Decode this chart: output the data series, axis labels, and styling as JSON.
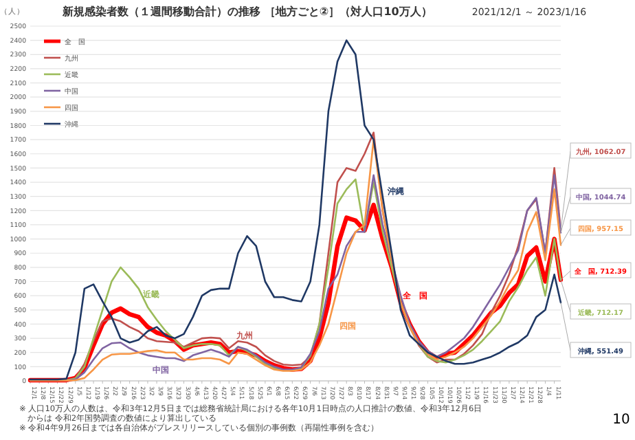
{
  "chart_data": {
    "type": "line",
    "title": "新規感染者数（１週間移動合計）の推移 ［地方ごと②］（対人口10万人）",
    "subtitle": "2021/12/1 ～ 2023/1/16",
    "ylabel": "（人）",
    "x": [
      "2021-12-01",
      "2021-12-08",
      "2021-12-15",
      "2021-12-22",
      "2021-12-29",
      "2022-01-05",
      "2022-01-12",
      "2022-01-19",
      "2022-01-26",
      "2022-02-02",
      "2022-02-09",
      "2022-02-16",
      "2022-02-23",
      "2022-03-02",
      "2022-03-09",
      "2022-03-16",
      "2022-03-23",
      "2022-03-30",
      "2022-04-06",
      "2022-04-13",
      "2022-04-20",
      "2022-04-27",
      "2022-05-04",
      "2022-05-11",
      "2022-05-18",
      "2022-05-25",
      "2022-06-01",
      "2022-06-08",
      "2022-06-15",
      "2022-06-22",
      "2022-06-29",
      "2022-07-06",
      "2022-07-13",
      "2022-07-20",
      "2022-07-27",
      "2022-08-03",
      "2022-08-10",
      "2022-08-17",
      "2022-08-24",
      "2022-08-31",
      "2022-09-07",
      "2022-09-14",
      "2022-09-21",
      "2022-09-28",
      "2022-10-05",
      "2022-10-12",
      "2022-10-19",
      "2022-10-26",
      "2022-11-02",
      "2022-11-09",
      "2022-11-16",
      "2022-11-23",
      "2022-11-30",
      "2022-12-07",
      "2022-12-14",
      "2022-12-21",
      "2022-12-28",
      "2023-01-04",
      "2023-01-11",
      "2023-01-16"
    ],
    "series": [
      {
        "name": "全　国",
        "color": "#ff0000",
        "values": [
          5,
          5,
          5,
          5,
          5,
          20,
          90,
          250,
          400,
          480,
          510,
          470,
          450,
          380,
          340,
          320,
          280,
          220,
          250,
          260,
          270,
          260,
          200,
          210,
          200,
          180,
          140,
          110,
          90,
          80,
          85,
          140,
          300,
          550,
          950,
          1150,
          1130,
          1060,
          1240,
          1000,
          800,
          550,
          400,
          280,
          200,
          160,
          190,
          200,
          260,
          320,
          400,
          480,
          530,
          620,
          680,
          880,
          940,
          700,
          1000,
          712.39
        ]
      },
      {
        "name": "九州",
        "color": "#c0504d",
        "values": [
          5,
          5,
          5,
          5,
          5,
          20,
          120,
          280,
          420,
          440,
          420,
          380,
          350,
          300,
          280,
          275,
          270,
          240,
          270,
          300,
          305,
          300,
          230,
          280,
          270,
          240,
          180,
          140,
          115,
          110,
          115,
          170,
          400,
          900,
          1400,
          1500,
          1480,
          1600,
          1750,
          1200,
          850,
          550,
          380,
          250,
          170,
          130,
          150,
          150,
          190,
          250,
          330,
          480,
          600,
          750,
          950,
          1200,
          1280,
          900,
          1500,
          1062.07
        ]
      },
      {
        "name": "近畿",
        "color": "#9bbb59",
        "values": [
          null,
          null,
          null,
          5,
          5,
          15,
          100,
          300,
          500,
          700,
          800,
          730,
          650,
          520,
          430,
          350,
          290,
          230,
          250,
          260,
          260,
          250,
          180,
          240,
          210,
          170,
          120,
          90,
          75,
          75,
          90,
          180,
          400,
          800,
          1250,
          1350,
          1420,
          1050,
          1400,
          1050,
          800,
          550,
          380,
          260,
          170,
          140,
          130,
          150,
          180,
          220,
          280,
          350,
          420,
          560,
          660,
          780,
          870,
          600,
          1000,
          712.17
        ]
      },
      {
        "name": "中国",
        "color": "#8064a2",
        "values": [
          3,
          3,
          3,
          3,
          3,
          10,
          60,
          150,
          230,
          265,
          270,
          230,
          200,
          180,
          170,
          160,
          160,
          140,
          180,
          200,
          220,
          200,
          170,
          240,
          220,
          180,
          130,
          100,
          80,
          80,
          95,
          190,
          350,
          650,
          750,
          950,
          1050,
          1050,
          1450,
          1100,
          850,
          600,
          400,
          280,
          210,
          170,
          200,
          250,
          300,
          380,
          480,
          580,
          680,
          800,
          920,
          1200,
          1290,
          900,
          1450,
          1044.74
        ]
      },
      {
        "name": "四国",
        "color": "#f79646",
        "values": [
          3,
          3,
          3,
          3,
          3,
          5,
          20,
          80,
          150,
          185,
          190,
          190,
          200,
          210,
          215,
          200,
          200,
          150,
          150,
          160,
          160,
          150,
          120,
          200,
          190,
          150,
          110,
          80,
          70,
          70,
          80,
          130,
          250,
          400,
          650,
          900,
          1050,
          1100,
          1700,
          1200,
          850,
          550,
          380,
          260,
          190,
          150,
          170,
          200,
          240,
          300,
          380,
          460,
          560,
          680,
          780,
          1050,
          1190,
          850,
          1350,
          957.15
        ]
      },
      {
        "name": "沖縄",
        "color": "#1f3864",
        "values": [
          10,
          10,
          10,
          10,
          15,
          200,
          650,
          680,
          560,
          450,
          300,
          270,
          290,
          350,
          380,
          320,
          300,
          330,
          450,
          600,
          640,
          650,
          650,
          900,
          1020,
          950,
          700,
          590,
          590,
          570,
          560,
          700,
          1100,
          1900,
          2250,
          2400,
          2300,
          1800,
          1700,
          1300,
          900,
          500,
          320,
          260,
          200,
          170,
          140,
          120,
          120,
          130,
          150,
          170,
          200,
          240,
          270,
          320,
          450,
          500,
          750,
          551.49
        ]
      }
    ],
    "xlim": [
      "2021-12-01",
      "2023-01-16"
    ],
    "xticks": [
      {
        "value": "2021-12-01",
        "label": "12/1"
      },
      {
        "value": "2021-12-08",
        "label": "12/8"
      },
      {
        "value": "2021-12-15",
        "label": "12/15"
      },
      {
        "value": "2021-12-22",
        "label": "12/22"
      },
      {
        "value": "2021-12-29",
        "label": "12/29"
      },
      {
        "value": "2022-01-05",
        "label": "1/5"
      },
      {
        "value": "2022-01-12",
        "label": "1/12"
      },
      {
        "value": "2022-01-19",
        "label": "1/19"
      },
      {
        "value": "2022-01-26",
        "label": "1/26"
      },
      {
        "value": "2022-02-02",
        "label": "2/2"
      },
      {
        "value": "2022-02-09",
        "label": "2/9"
      },
      {
        "value": "2022-02-16",
        "label": "2/16"
      },
      {
        "value": "2022-02-23",
        "label": "2/23"
      },
      {
        "value": "2022-03-02",
        "label": "3/2"
      },
      {
        "value": "2022-03-09",
        "label": "3/9"
      },
      {
        "value": "2022-03-16",
        "label": "3/16"
      },
      {
        "value": "2022-03-23",
        "label": "3/23"
      },
      {
        "value": "2022-03-30",
        "label": "3/30"
      },
      {
        "value": "2022-04-06",
        "label": "4/6"
      },
      {
        "value": "2022-04-13",
        "label": "4/13"
      },
      {
        "value": "2022-04-20",
        "label": "4/20"
      },
      {
        "value": "2022-04-27",
        "label": "4/27"
      },
      {
        "value": "2022-05-04",
        "label": "5/4"
      },
      {
        "value": "2022-05-11",
        "label": "5/11"
      },
      {
        "value": "2022-05-18",
        "label": "5/18"
      },
      {
        "value": "2022-05-25",
        "label": "5/25"
      },
      {
        "value": "2022-06-01",
        "label": "6/1"
      },
      {
        "value": "2022-06-08",
        "label": "6/8"
      },
      {
        "value": "2022-06-15",
        "label": "6/15"
      },
      {
        "value": "2022-06-22",
        "label": "6/22"
      },
      {
        "value": "2022-06-29",
        "label": "6/29"
      },
      {
        "value": "2022-07-06",
        "label": "7/6"
      },
      {
        "value": "2022-07-13",
        "label": "7/13"
      },
      {
        "value": "2022-07-20",
        "label": "7/20"
      },
      {
        "value": "2022-07-27",
        "label": "7/27"
      },
      {
        "value": "2022-08-03",
        "label": "8/3"
      },
      {
        "value": "2022-08-10",
        "label": "8/10"
      },
      {
        "value": "2022-08-17",
        "label": "8/17"
      },
      {
        "value": "2022-08-24",
        "label": "8/24"
      },
      {
        "value": "2022-08-31",
        "label": "8/31"
      },
      {
        "value": "2022-09-07",
        "label": "9/7"
      },
      {
        "value": "2022-09-14",
        "label": "9/14"
      },
      {
        "value": "2022-09-21",
        "label": "9/21"
      },
      {
        "value": "2022-09-28",
        "label": "9/28"
      },
      {
        "value": "2022-10-05",
        "label": "10/5"
      },
      {
        "value": "2022-10-12",
        "label": "10/12"
      },
      {
        "value": "2022-10-19",
        "label": "10/19"
      },
      {
        "value": "2022-10-26",
        "label": "10/26"
      },
      {
        "value": "2022-11-02",
        "label": "11/2"
      },
      {
        "value": "2022-11-09",
        "label": "11/9"
      },
      {
        "value": "2022-11-16",
        "label": "11/16"
      },
      {
        "value": "2022-11-23",
        "label": "11/23"
      },
      {
        "value": "2022-11-30",
        "label": "11/30"
      },
      {
        "value": "2022-12-07",
        "label": "12/7"
      },
      {
        "value": "2022-12-14",
        "label": "12/14"
      },
      {
        "value": "2022-12-21",
        "label": "12/21"
      },
      {
        "value": "2022-12-28",
        "label": "12/28"
      },
      {
        "value": "2023-01-04",
        "label": "1/4"
      },
      {
        "value": "2023-01-11",
        "label": "1/11"
      }
    ],
    "ylim": [
      0,
      2500
    ],
    "yticks": [
      0,
      100,
      200,
      300,
      400,
      500,
      600,
      700,
      800,
      900,
      1000,
      1100,
      1200,
      1300,
      1400,
      1500,
      1600,
      1700,
      1800,
      1900,
      2000,
      2100,
      2200,
      2300,
      2400,
      2500
    ],
    "grid": "y",
    "legend": "top left",
    "marker": "none",
    "line_style": "solid",
    "annotations": [
      {
        "text": "九州, 1062.07",
        "x": "2023-01-16",
        "y": 1062.07
      },
      {
        "text": "中国, 1044.74",
        "x": "2023-01-16",
        "y": 1044.74
      },
      {
        "text": "四国, 957.15",
        "x": "2023-01-16",
        "y": 957.15
      },
      {
        "text": "全　国, 712.39",
        "x": "2023-01-16",
        "y": 712.39
      },
      {
        "text": "近畿, 712.17",
        "x": "2023-01-16",
        "y": 712.17
      },
      {
        "text": "沖縄, 551.49",
        "x": "2023-01-16",
        "y": 551.49
      },
      "近畿",
      "九州",
      "中国",
      "沖縄",
      "全　国",
      "四国",
      "※ 人口10万人の人数は、令和3年12月5日までは総務省統計局における各年10月1日時点の人口推計の数値、令和3年12月6日からは 令和2年国勢調査の数値により算出している",
      "※ 令和4年9月26日までは各自治体がプレスリリースしている個別の事例数（再陽性事例を含む）",
      "10"
    ]
  }
}
